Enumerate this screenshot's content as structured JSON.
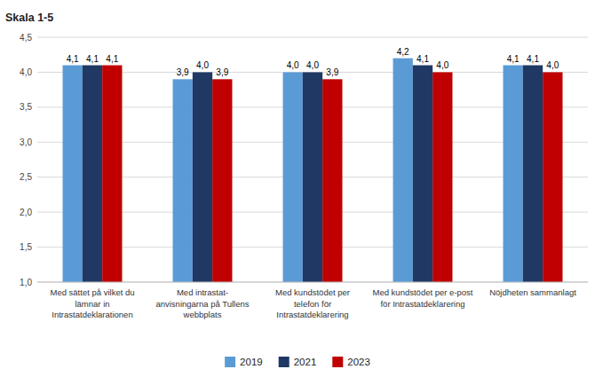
{
  "chart_data": {
    "type": "bar",
    "ylabel": "Skala 1-5",
    "categories": [
      "Med sättet på vilket du\nlämnar in\nIntrastatdeklarationen",
      "Med intrastat-\nanvisningarna på Tullens\nwebbplats",
      "Med kundstödet per\ntelefon för\nIntrastatdeklarering",
      "Med kundstödet per e-post\nför Intrastatdeklarering",
      "Nöjdheten sammanlagt"
    ],
    "series": [
      {
        "name": "2019",
        "color": "#5B9BD5",
        "values": [
          4.1,
          3.9,
          4.0,
          4.2,
          4.1
        ],
        "value_labels": [
          "4,1",
          "3,9",
          "4,0",
          "4,2",
          "4,1"
        ]
      },
      {
        "name": "2021",
        "color": "#1F3864",
        "values": [
          4.1,
          4.0,
          4.0,
          4.1,
          4.1
        ],
        "value_labels": [
          "4,1",
          "4,0",
          "4,0",
          "4,1",
          "4,1"
        ]
      },
      {
        "name": "2023",
        "color": "#C00000",
        "values": [
          4.1,
          3.9,
          3.9,
          4.0,
          4.0
        ],
        "value_labels": [
          "4,1",
          "3,9",
          "3,9",
          "4,0",
          "4,0"
        ]
      }
    ],
    "ylim": [
      1.0,
      4.5
    ],
    "yticks": [
      {
        "value": 1.0,
        "label": "1,0"
      },
      {
        "value": 1.5,
        "label": "1,5"
      },
      {
        "value": 2.0,
        "label": "2,0"
      },
      {
        "value": 2.5,
        "label": "2,5"
      },
      {
        "value": 3.0,
        "label": "3,0"
      },
      {
        "value": 3.5,
        "label": "3,5"
      },
      {
        "value": 4.0,
        "label": "4,0"
      },
      {
        "value": 4.5,
        "label": "4,5"
      }
    ],
    "grid": true,
    "legend": "bottom",
    "data_labels": true
  }
}
